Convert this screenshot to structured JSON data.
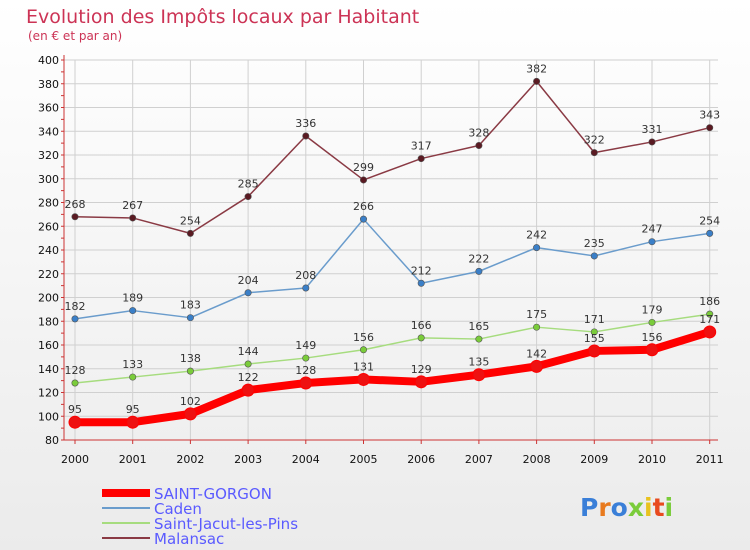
{
  "title": "Evolution des Impôts locaux par Habitant",
  "subtitle": "(en € et par an)",
  "logo": "Proxiti",
  "colors": {
    "title": "#cc3355",
    "axis": "#cc3333",
    "grid": "#d0d0d0",
    "background_top": "#ffffff",
    "background_bottom": "#ebebeb",
    "legend_text": "#5a5aff"
  },
  "chart_data": {
    "type": "line",
    "x": [
      "2000",
      "2001",
      "2002",
      "2003",
      "2004",
      "2005",
      "2006",
      "2007",
      "2008",
      "2009",
      "2010",
      "2011"
    ],
    "ylim": [
      80,
      400
    ],
    "yticks": [
      80,
      100,
      120,
      140,
      160,
      180,
      200,
      220,
      240,
      260,
      280,
      300,
      320,
      340,
      360,
      380,
      400
    ],
    "grid": true,
    "legend_placement": "bottom-left",
    "series": [
      {
        "name": "SAINT-GORGON",
        "color": "#ff0000",
        "marker": "#ee1111",
        "width": "thick",
        "values": [
          95,
          95,
          102,
          122,
          128,
          131,
          129,
          135,
          142,
          155,
          156,
          171
        ]
      },
      {
        "name": "Caden",
        "color": "#6a9ccc",
        "marker": "#3a7fc8",
        "width": "thin",
        "values": [
          182,
          189,
          183,
          204,
          208,
          266,
          212,
          222,
          242,
          235,
          247,
          254
        ]
      },
      {
        "name": "Saint-Jacut-les-Pins",
        "color": "#a6dc7e",
        "marker": "#7acc3a",
        "width": "thin",
        "values": [
          128,
          133,
          138,
          144,
          149,
          156,
          166,
          165,
          175,
          171,
          179,
          186
        ]
      },
      {
        "name": "Malansac",
        "color": "#8a3a44",
        "marker": "#5a1a22",
        "width": "thin",
        "values": [
          268,
          267,
          254,
          285,
          336,
          299,
          317,
          328,
          382,
          322,
          331,
          343
        ]
      }
    ]
  }
}
